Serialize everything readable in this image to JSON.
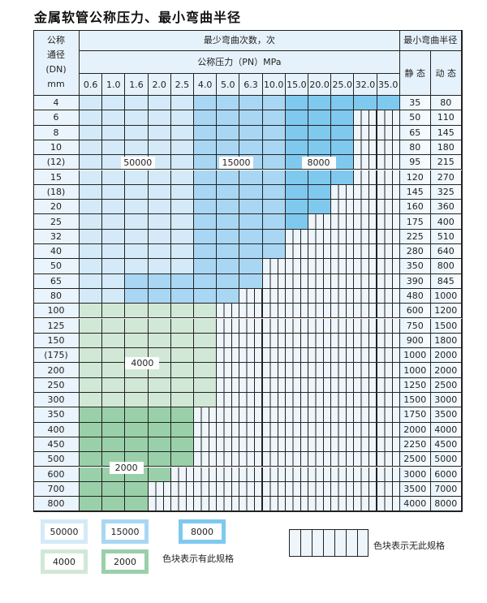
{
  "title": "金属软管公称压力、最小弯曲半径",
  "header": {
    "dn": [
      "公称",
      "通径",
      "(DN)",
      "mm"
    ],
    "cycles": "最少弯曲次数，次",
    "pressure": "公称压力（PN）MPa",
    "radius": "最小弯曲半径",
    "static": "静 态",
    "dynamic": "动 态",
    "pressures": [
      "0.6",
      "1.0",
      "1.6",
      "2.0",
      "2.5",
      "4.0",
      "5.0",
      "6.3",
      "10.0",
      "15.0",
      "20.0",
      "25.0",
      "32.0",
      "35.0"
    ]
  },
  "colors": {
    "L": "#d4eaf8",
    "M": "#a9d7f3",
    "D": "#7fc9ef",
    "G1": "#d2e8d6",
    "G2": "#9ad0a9"
  },
  "rows": [
    {
      "dn": "4",
      "static": "35",
      "dynamic": "80",
      "cells": "LLLLLMMMMDDDDD"
    },
    {
      "dn": "6",
      "static": "50",
      "dynamic": "110",
      "cells": "LLLLLMMMMDDD"
    },
    {
      "dn": "8",
      "static": "65",
      "dynamic": "145",
      "cells": "LLLLLMMMMDDD"
    },
    {
      "dn": "10",
      "static": "80",
      "dynamic": "180",
      "cells": "LLLLLMMMMDDD"
    },
    {
      "dn": "(12)",
      "static": "95",
      "dynamic": "215",
      "cells": "LLLLLMMMMDDD"
    },
    {
      "dn": "15",
      "static": "120",
      "dynamic": "270",
      "cells": "LLLLLMMMMDDD"
    },
    {
      "dn": "(18)",
      "static": "145",
      "dynamic": "325",
      "cells": "LLLLLMMMMDD"
    },
    {
      "dn": "20",
      "static": "160",
      "dynamic": "360",
      "cells": "LLLLLMMMMDD"
    },
    {
      "dn": "25",
      "static": "175",
      "dynamic": "400",
      "cells": "LLLLLMMMMD"
    },
    {
      "dn": "32",
      "static": "225",
      "dynamic": "510",
      "cells": "LLLLLMMMM"
    },
    {
      "dn": "40",
      "static": "280",
      "dynamic": "640",
      "cells": "LLLLLMMMM"
    },
    {
      "dn": "50",
      "static": "350",
      "dynamic": "800",
      "cells": "LLLLLMMM"
    },
    {
      "dn": "65",
      "static": "390",
      "dynamic": "845",
      "cells": "LLMMMMMM"
    },
    {
      "dn": "80",
      "static": "480",
      "dynamic": "1000",
      "cells": "LLMMMMM"
    },
    {
      "dn": "100",
      "static": "600",
      "dynamic": "1200",
      "cells": "G1G1G1G1G1G1"
    },
    {
      "dn": "125",
      "static": "750",
      "dynamic": "1500",
      "cells": "G1G1G1G1G1G1"
    },
    {
      "dn": "150",
      "static": "900",
      "dynamic": "1800",
      "cells": "G1G1G1G1G1G1"
    },
    {
      "dn": "(175)",
      "static": "1000",
      "dynamic": "2000",
      "cells": "G1G1G1G1G1G1"
    },
    {
      "dn": "200",
      "static": "1000",
      "dynamic": "2000",
      "cells": "G1G1G1G1G1G1"
    },
    {
      "dn": "250",
      "static": "1250",
      "dynamic": "2500",
      "cells": "G1G1G1G1G1G1"
    },
    {
      "dn": "300",
      "static": "1500",
      "dynamic": "3000",
      "cells": "G1G1G1G1G1G1"
    },
    {
      "dn": "350",
      "static": "1750",
      "dynamic": "3500",
      "cells": "G2G2G2G2G2"
    },
    {
      "dn": "400",
      "static": "2000",
      "dynamic": "4000",
      "cells": "G2G2G2G2G2"
    },
    {
      "dn": "450",
      "static": "2250",
      "dynamic": "4500",
      "cells": "G2G2G2G2G2"
    },
    {
      "dn": "500",
      "static": "2500",
      "dynamic": "5000",
      "cells": "G2G2G2G2G2"
    },
    {
      "dn": "600",
      "static": "3000",
      "dynamic": "6000",
      "cells": "G2G2G2G2"
    },
    {
      "dn": "700",
      "static": "3500",
      "dynamic": "7000",
      "cells": "G2G2G2"
    },
    {
      "dn": "800",
      "static": "4000",
      "dynamic": "8000",
      "cells": "G2G2G2"
    }
  ],
  "zone_labels": [
    {
      "text": "50000",
      "zone": "L"
    },
    {
      "text": "15000",
      "zone": "M"
    },
    {
      "text": "8000",
      "zone": "D"
    },
    {
      "text": "4000",
      "zone": "G1"
    },
    {
      "text": "2000",
      "zone": "G2"
    }
  ],
  "legend": {
    "items": [
      {
        "text": "50000",
        "zone": "L"
      },
      {
        "text": "15000",
        "zone": "M"
      },
      {
        "text": "8000",
        "zone": "D"
      },
      {
        "text": "4000",
        "zone": "G1"
      },
      {
        "text": "2000",
        "zone": "G2"
      }
    ],
    "has_spec": "色块表示有此规格",
    "no_spec": "色块表示无此规格"
  }
}
